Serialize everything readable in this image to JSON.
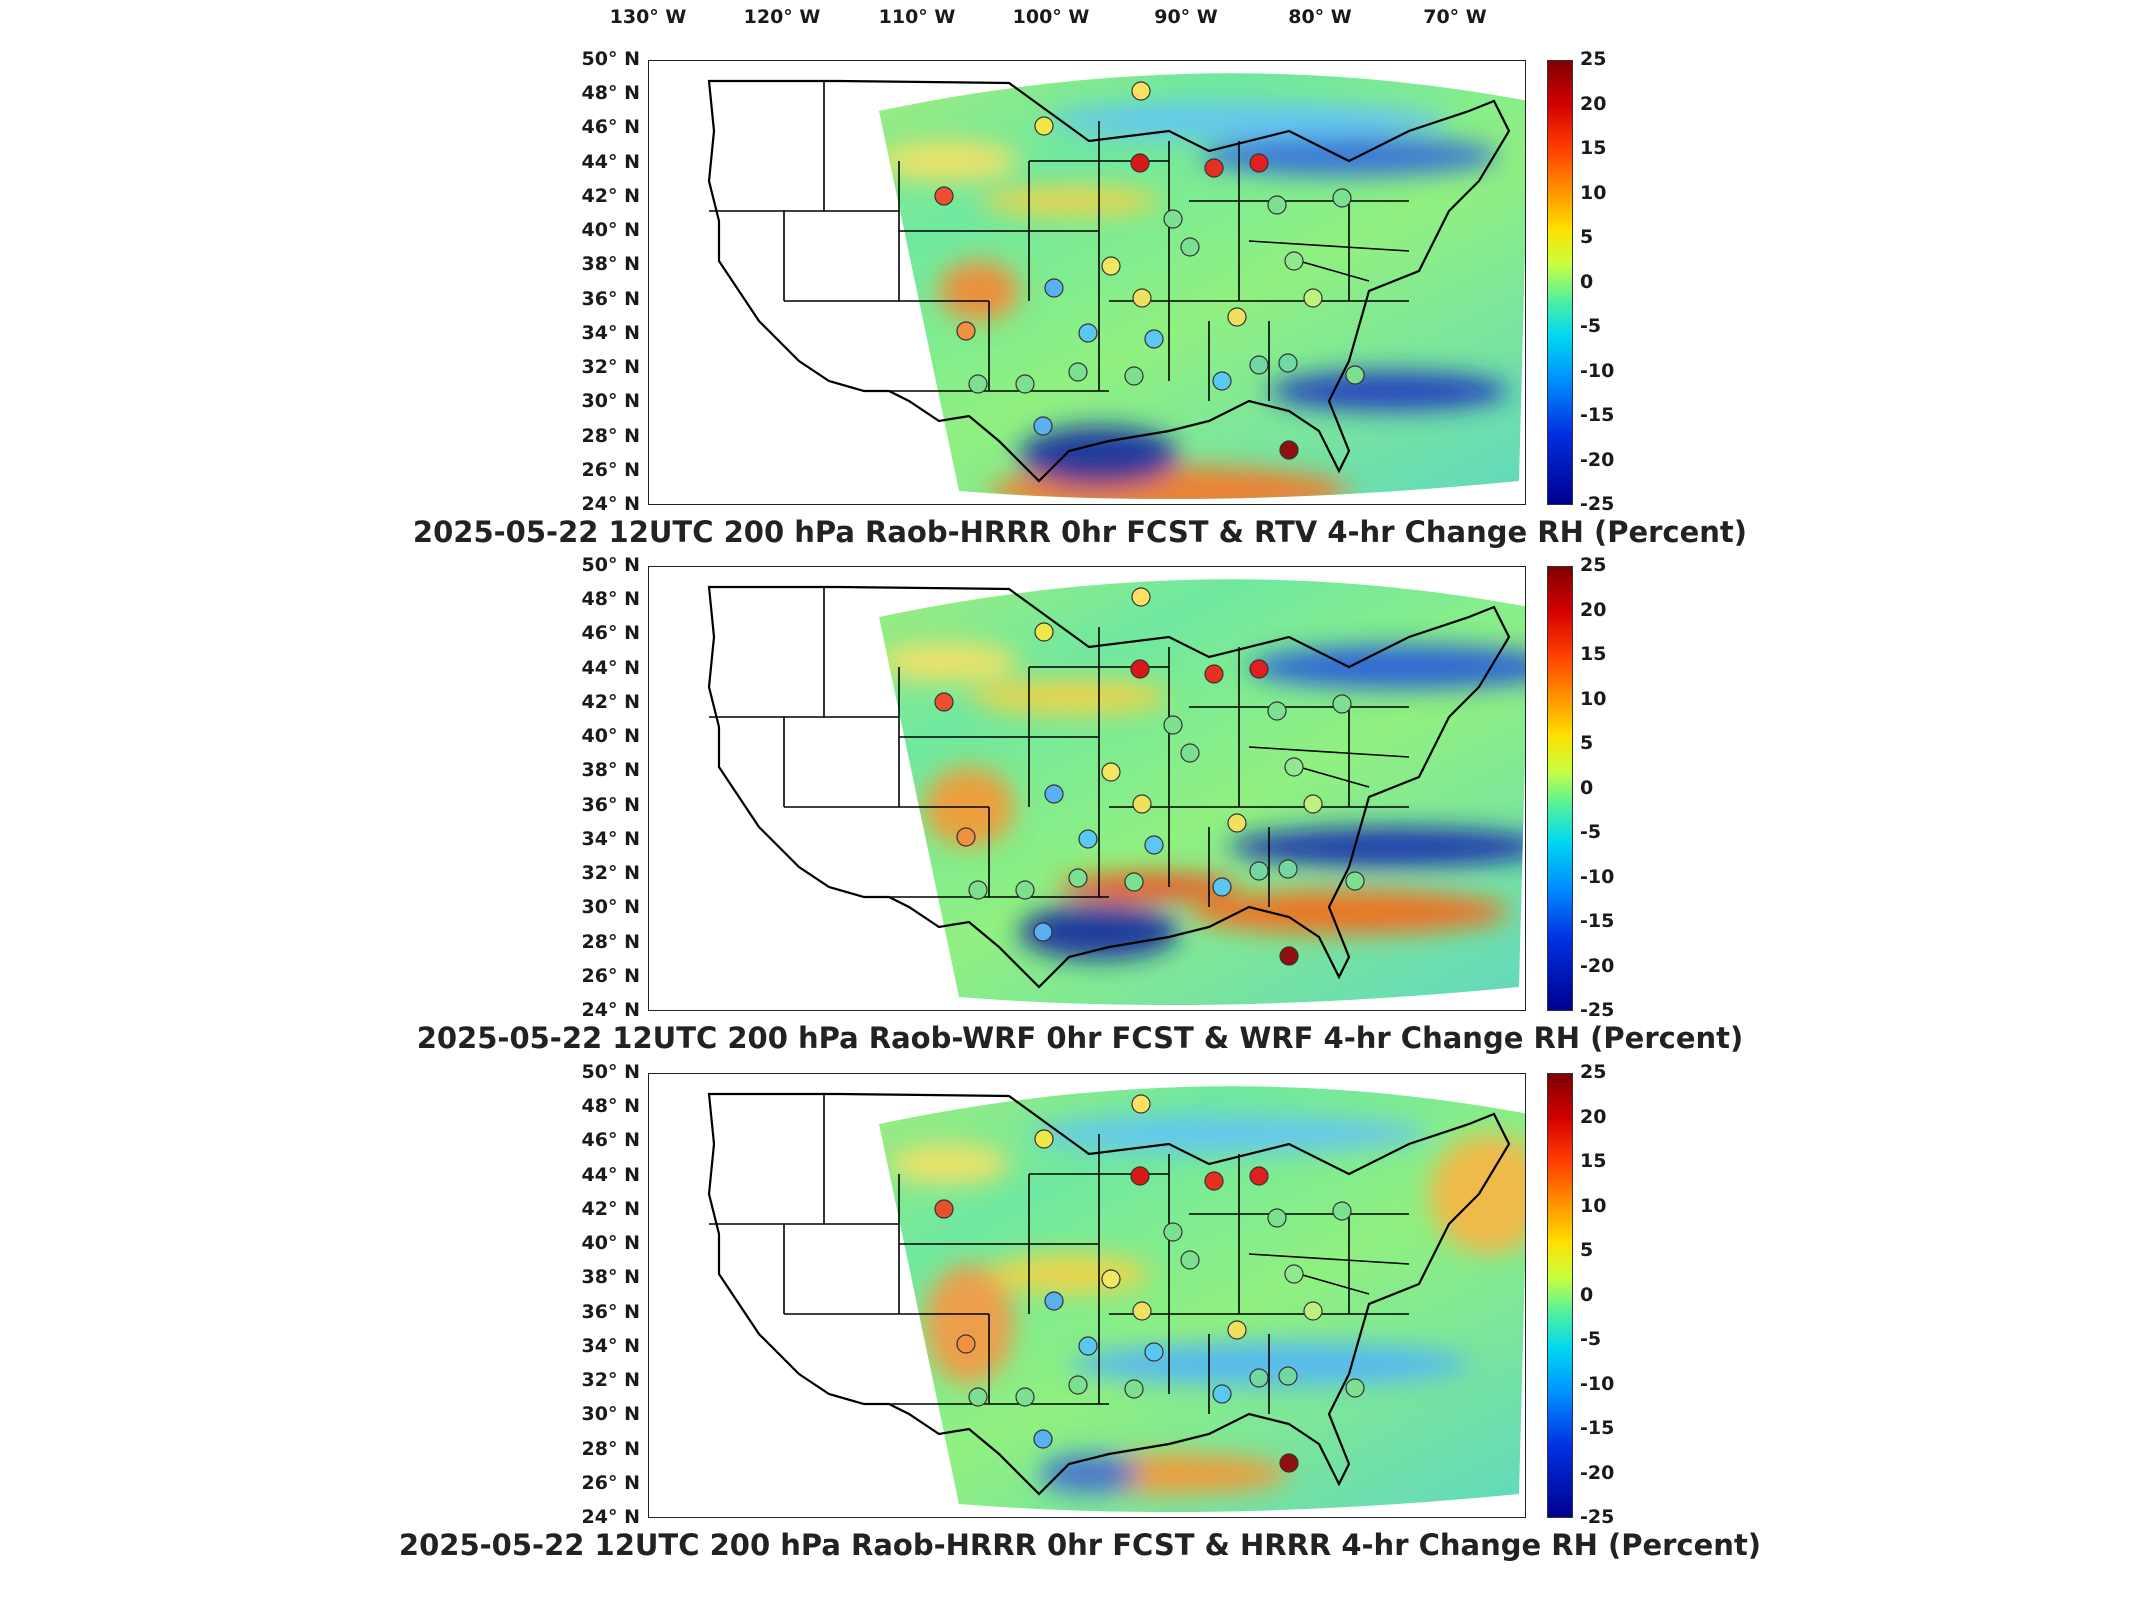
{
  "longitude_labels": [
    "130° W",
    "120° W",
    "110° W",
    "100° W",
    "90° W",
    "80° W",
    "70° W"
  ],
  "latitude_labels": [
    "50° N",
    "48° N",
    "46° N",
    "44° N",
    "42° N",
    "40° N",
    "38° N",
    "36° N",
    "34° N",
    "32° N",
    "30° N",
    "28° N",
    "26° N",
    "24° N"
  ],
  "colorbar": {
    "ticks": [
      "25",
      "20",
      "15",
      "10",
      "5",
      "0",
      "-5",
      "-10",
      "-15",
      "-20",
      "-25"
    ],
    "range": [
      -25,
      25
    ],
    "colormap": [
      "#800000",
      "#ff0000",
      "#ff9900",
      "#ffe000",
      "#60f0a0",
      "#00d8f0",
      "#0060ff",
      "#000090"
    ]
  },
  "panels": [
    {
      "title": "2025-05-22 12UTC 200 hPa Raob-HRRR 0hr FCST & RTV 4-hr Change RH (Percent)"
    },
    {
      "title": "2025-05-22 12UTC 200 hPa Raob-WRF 0hr FCST & WRF 4-hr Change RH (Percent)"
    },
    {
      "title": "2025-05-22 12UTC 200 hPa Raob-HRRR 0hr FCST & HRRR 4-hr Change RH (Percent)"
    }
  ]
}
